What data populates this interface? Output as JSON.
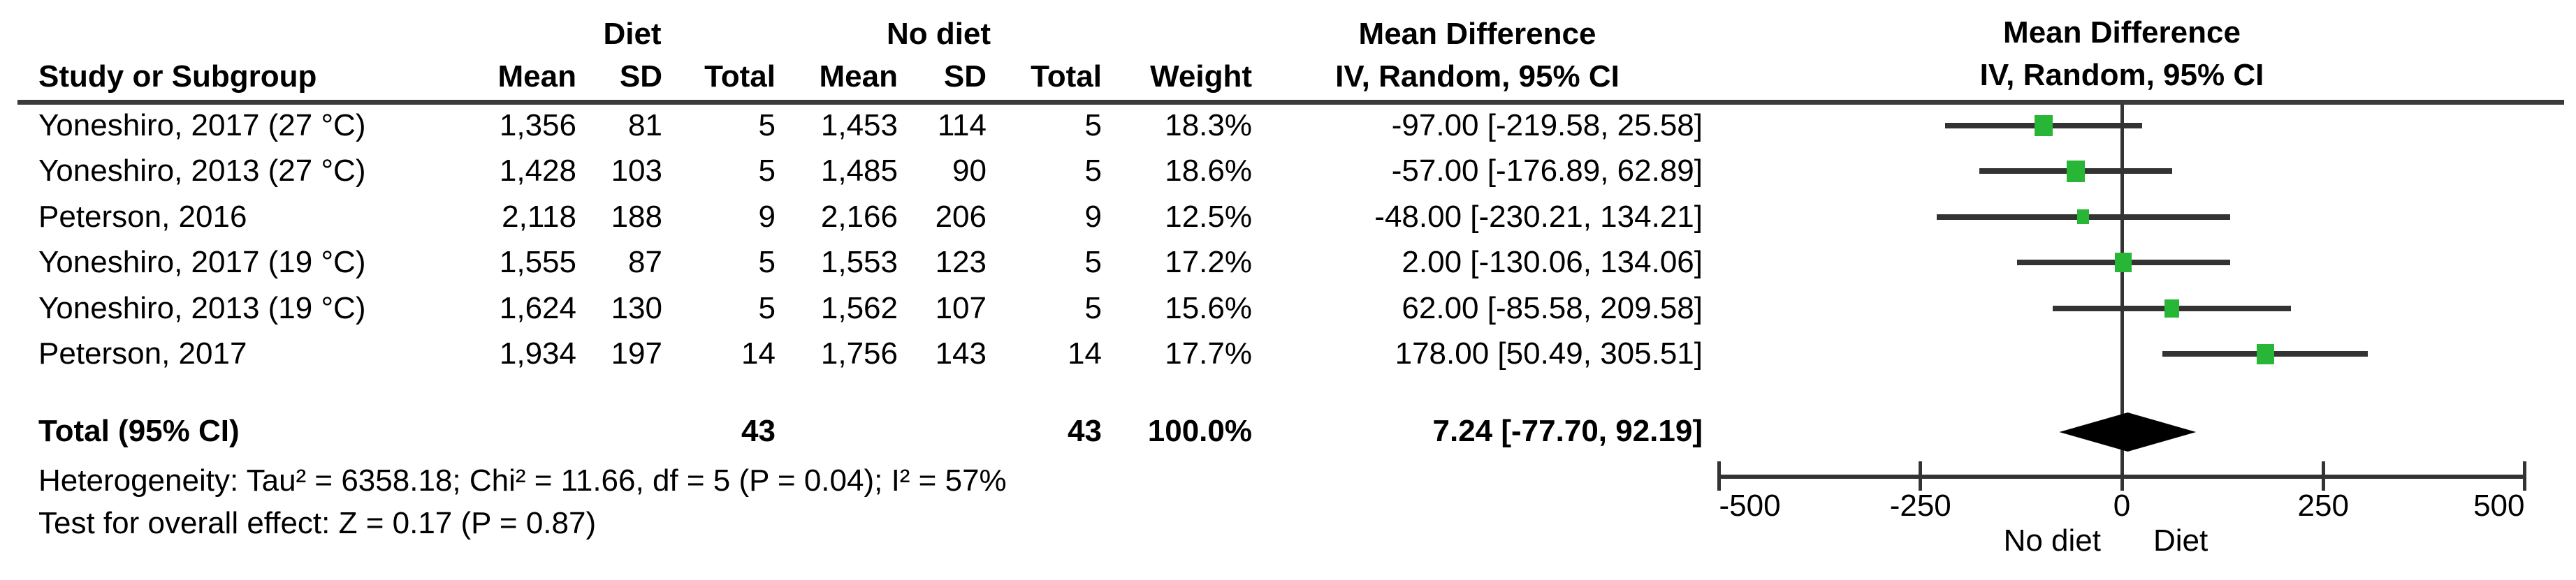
{
  "table": {
    "group1_header": "Diet",
    "group2_header": "No diet",
    "effect_header_line1": "Mean Difference",
    "effect_header_line2": "IV, Random, 95% CI",
    "cols": {
      "study": "Study or Subgroup",
      "mean": "Mean",
      "sd": "SD",
      "total": "Total",
      "weight": "Weight",
      "ci": "IV, Random, 95% CI"
    },
    "rows": [
      {
        "study": "Yoneshiro, 2017 (27 °C)",
        "mean1": "1,356",
        "sd1": "81",
        "total1": "5",
        "mean2": "1,453",
        "sd2": "114",
        "total2": "5",
        "weight": "18.3%",
        "ci_text": "-97.00 [-219.58, 25.58]"
      },
      {
        "study": "Yoneshiro, 2013 (27 °C)",
        "mean1": "1,428",
        "sd1": "103",
        "total1": "5",
        "mean2": "1,485",
        "sd2": "90",
        "total2": "5",
        "weight": "18.6%",
        "ci_text": "-57.00 [-176.89, 62.89]"
      },
      {
        "study": "Peterson, 2016",
        "mean1": "2,118",
        "sd1": "188",
        "total1": "9",
        "mean2": "2,166",
        "sd2": "206",
        "total2": "9",
        "weight": "12.5%",
        "ci_text": "-48.00 [-230.21, 134.21]"
      },
      {
        "study": "Yoneshiro, 2017 (19 °C)",
        "mean1": "1,555",
        "sd1": "87",
        "total1": "5",
        "mean2": "1,553",
        "sd2": "123",
        "total2": "5",
        "weight": "17.2%",
        "ci_text": "2.00 [-130.06, 134.06]"
      },
      {
        "study": "Yoneshiro, 2013 (19 °C)",
        "mean1": "1,624",
        "sd1": "130",
        "total1": "5",
        "mean2": "1,562",
        "sd2": "107",
        "total2": "5",
        "weight": "15.6%",
        "ci_text": "62.00 [-85.58, 209.58]"
      },
      {
        "study": "Peterson, 2017",
        "mean1": "1,934",
        "sd1": "197",
        "total1": "14",
        "mean2": "1,756",
        "sd2": "143",
        "total2": "14",
        "weight": "17.7%",
        "ci_text": "178.00 [50.49, 305.51]"
      }
    ],
    "total_row": {
      "label": "Total (95% CI)",
      "total1": "43",
      "total2": "43",
      "weight": "100.0%",
      "ci_text": "7.24 [-77.70, 92.19]"
    },
    "footer_lines": [
      "Heterogeneity: Tau² = 6358.18; Chi² = 11.66, df = 5 (P = 0.04); I² = 57%",
      "Test for overall effect: Z = 0.17 (P = 0.87)"
    ]
  },
  "plot": {
    "header_line1": "Mean Difference",
    "header_line2": "IV, Random, 95% CI",
    "marker_color": "#28b637",
    "line_color": "#333333",
    "diamond_color": "#000000"
  },
  "chart_data": {
    "type": "forest",
    "effect_measure": "Mean Difference",
    "model": "IV, Random, 95% CI",
    "studies": [
      {
        "name": "Yoneshiro, 2017 (27 °C)",
        "md": -97.0,
        "ci_low": -219.58,
        "ci_high": 25.58,
        "weight_pct": 18.3
      },
      {
        "name": "Yoneshiro, 2013 (27 °C)",
        "md": -57.0,
        "ci_low": -176.89,
        "ci_high": 62.89,
        "weight_pct": 18.6
      },
      {
        "name": "Peterson, 2016",
        "md": -48.0,
        "ci_low": -230.21,
        "ci_high": 134.21,
        "weight_pct": 12.5
      },
      {
        "name": "Yoneshiro, 2017 (19 °C)",
        "md": 2.0,
        "ci_low": -130.06,
        "ci_high": 134.06,
        "weight_pct": 17.2
      },
      {
        "name": "Yoneshiro, 2013 (19 °C)",
        "md": 62.0,
        "ci_low": -85.58,
        "ci_high": 209.58,
        "weight_pct": 15.6
      },
      {
        "name": "Peterson, 2017",
        "md": 178.0,
        "ci_low": 50.49,
        "ci_high": 305.51,
        "weight_pct": 17.7
      }
    ],
    "total": {
      "label": "Total (95% CI)",
      "md": 7.24,
      "ci_low": -77.7,
      "ci_high": 92.19
    },
    "axis": {
      "min": -500,
      "max": 500,
      "ticks": [
        -500,
        -250,
        0,
        250,
        500
      ],
      "label_left": "No diet",
      "label_right": "Diet"
    }
  }
}
